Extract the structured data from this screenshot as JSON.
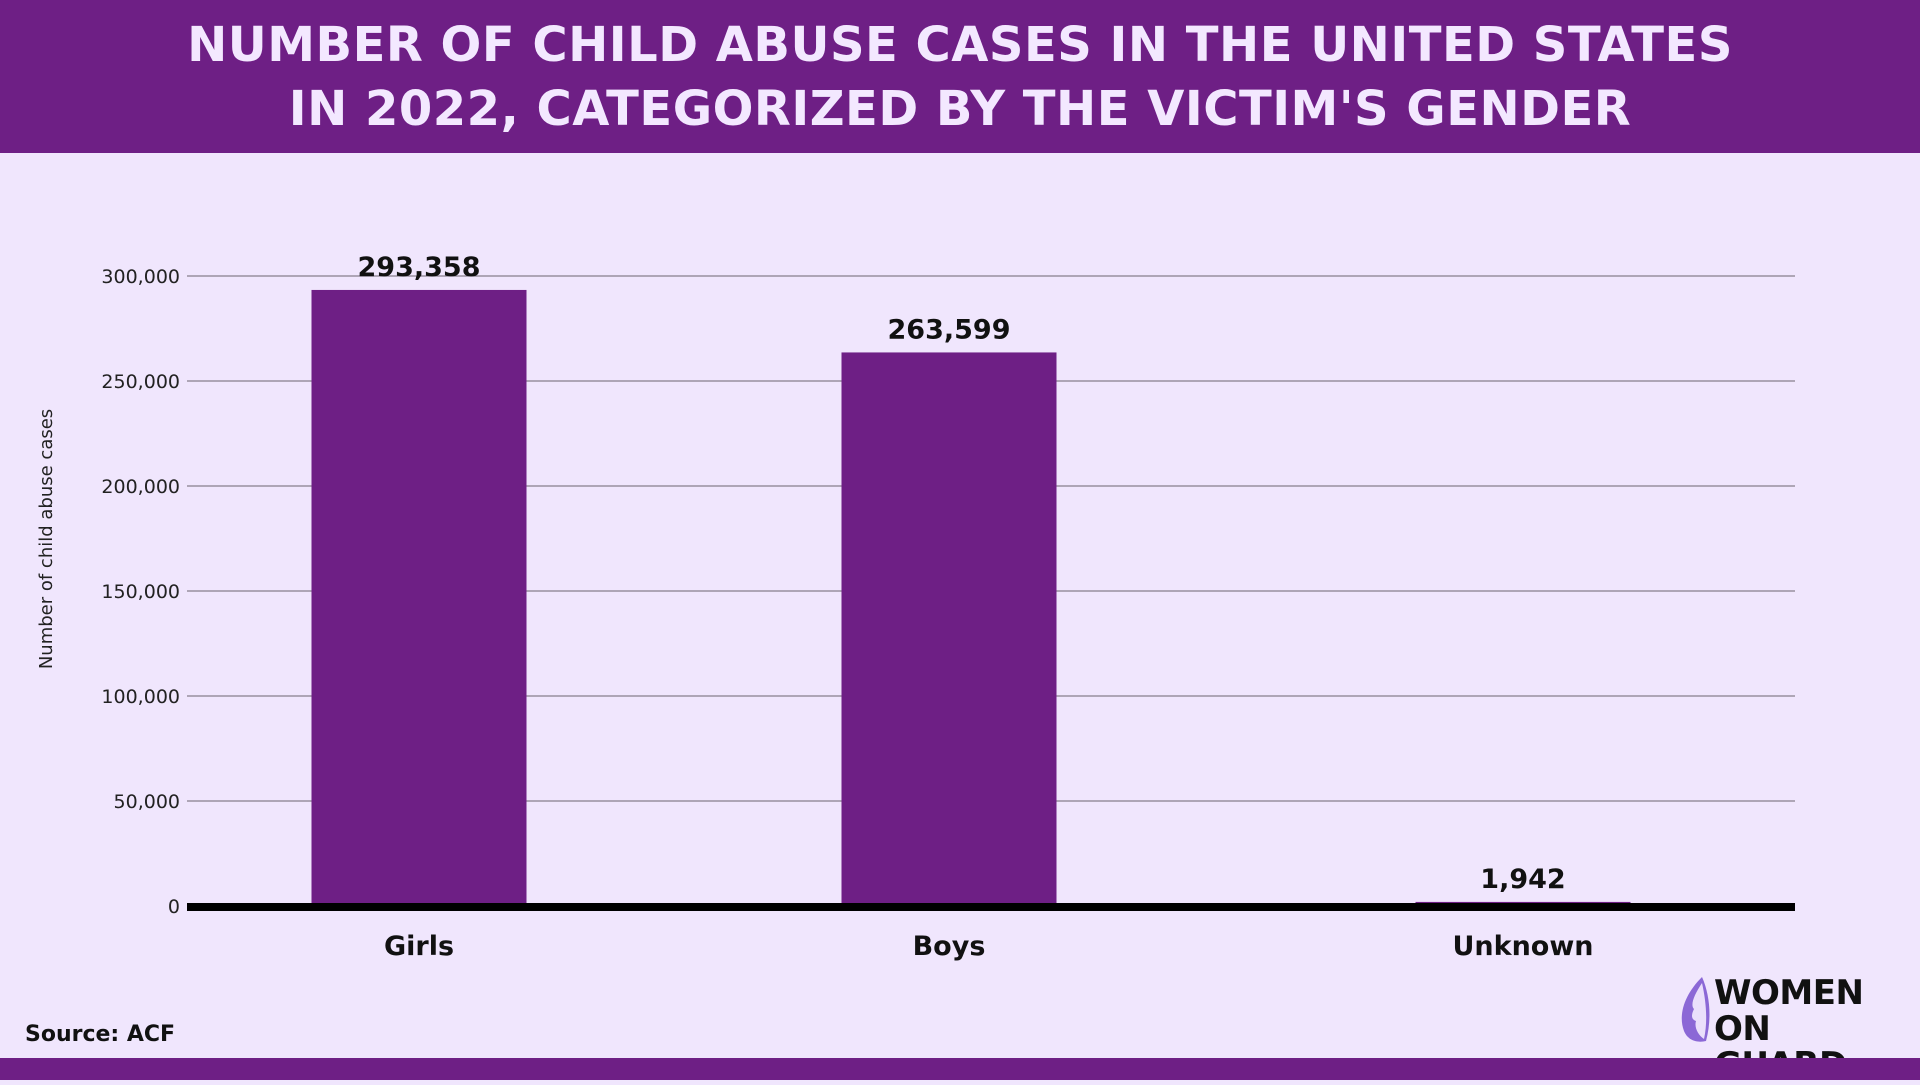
{
  "header": {
    "title_line1": "NUMBER OF CHILD ABUSE CASES IN THE UNITED STATES",
    "title_line2": "IN 2022, CATEGORIZED BY THE VICTIM'S GENDER"
  },
  "source": "Source: ACF",
  "logo": {
    "line1": "WOMEN",
    "line2": "ON GUARD"
  },
  "colors": {
    "brand": "#6e1f85",
    "background": "#f0e6fd",
    "bar": "#6e1f85"
  },
  "chart_data": {
    "type": "bar",
    "title": "NUMBER OF CHILD ABUSE CASES IN THE UNITED STATES IN 2022, CATEGORIZED BY THE VICTIM'S GENDER",
    "categories": [
      "Girls",
      "Boys",
      "Unknown"
    ],
    "values": [
      293358,
      263599,
      1942
    ],
    "value_labels": [
      "293,358",
      "263,599",
      "1,942"
    ],
    "xlabel": "",
    "ylabel": "Number of child abuse cases",
    "ylim": [
      0,
      300000
    ],
    "yticks": [
      0,
      50000,
      100000,
      150000,
      200000,
      250000,
      300000
    ],
    "ytick_labels": [
      "0",
      "50,000",
      "100,000",
      "150,000",
      "200,000",
      "250,000",
      "300,000"
    ],
    "grid": true,
    "legend": "none"
  }
}
